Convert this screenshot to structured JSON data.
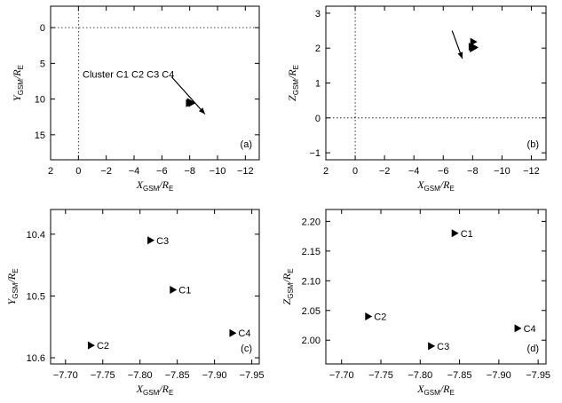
{
  "chart_data": [
    {
      "type": "scatter",
      "panel_label": "(a)",
      "xlabel": "X_GSM/R_E",
      "xlabel_main": "X",
      "xlabel_sub": "GSM",
      "xlabel_unit": "/R",
      "xlabel_unit_sub": "E",
      "ylabel_main": "Y",
      "ylabel_sub": "GSM",
      "ylabel_unit": "/R",
      "ylabel_unit_sub": "E",
      "xlim": [
        2,
        -13
      ],
      "ylim": [
        -3,
        18.5
      ],
      "x_reversed": true,
      "y_reversed": true,
      "xticks": [
        2,
        0,
        -2,
        -4,
        -6,
        -8,
        -10,
        -12
      ],
      "xtick_labels": [
        "2",
        "0",
        "−2",
        "−4",
        "−6",
        "−8",
        "−10",
        "−12"
      ],
      "yticks": [
        0,
        5,
        10,
        15
      ],
      "ytick_labels": [
        "0",
        "5",
        "10",
        "15"
      ],
      "zero_lines": {
        "x": 0,
        "y": 0
      },
      "annotation": "Cluster  C1  C2  C3  C4",
      "arrow": {
        "from": [
          -6.7,
          6.9
        ],
        "to": [
          -9.1,
          12.1
        ]
      },
      "points": [
        {
          "x": -7.84,
          "y": 10.49
        },
        {
          "x": -7.73,
          "y": 10.58
        },
        {
          "x": -7.81,
          "y": 10.41
        },
        {
          "x": -7.92,
          "y": 10.56
        }
      ]
    },
    {
      "type": "scatter",
      "panel_label": "(b)",
      "xlabel_main": "X",
      "xlabel_sub": "GSM",
      "xlabel_unit": "/R",
      "xlabel_unit_sub": "E",
      "ylabel_main": "Z",
      "ylabel_sub": "GSM",
      "ylabel_unit": "/R",
      "ylabel_unit_sub": "E",
      "xlim": [
        2,
        -13
      ],
      "ylim": [
        -1.2,
        3.2
      ],
      "x_reversed": true,
      "xticks": [
        2,
        0,
        -2,
        -4,
        -6,
        -8,
        -10,
        -12
      ],
      "xtick_labels": [
        "2",
        "0",
        "−2",
        "−4",
        "−6",
        "−8",
        "−10",
        "−12"
      ],
      "yticks": [
        -1,
        0,
        1,
        2,
        3
      ],
      "ytick_labels": [
        "−1",
        "0",
        "1",
        "2",
        "3"
      ],
      "zero_lines": {
        "x": 0,
        "y": 0
      },
      "arrow": {
        "from": [
          -6.6,
          2.5
        ],
        "to": [
          -7.3,
          1.7
        ]
      },
      "points": [
        {
          "x": -7.84,
          "y": 2.18
        },
        {
          "x": -7.73,
          "y": 2.04
        },
        {
          "x": -7.81,
          "y": 1.99
        },
        {
          "x": -7.92,
          "y": 2.02
        }
      ]
    },
    {
      "type": "scatter",
      "panel_label": "(c)",
      "xlabel_main": "X",
      "xlabel_sub": "GSM",
      "xlabel_unit": "/R",
      "xlabel_unit_sub": "E",
      "ylabel_main": "Y",
      "ylabel_sub": "GSM",
      "ylabel_unit": "/R",
      "ylabel_unit_sub": "E",
      "xlim": [
        -7.68,
        -7.96
      ],
      "ylim": [
        10.36,
        10.61
      ],
      "x_reversed": true,
      "y_reversed": true,
      "xticks": [
        -7.7,
        -7.75,
        -7.8,
        -7.85,
        -7.9,
        -7.95
      ],
      "xtick_labels": [
        "−7.70",
        "−7.75",
        "−7.80",
        "−7.85",
        "−7.90",
        "−7.95"
      ],
      "yticks": [
        10.4,
        10.5,
        10.6
      ],
      "ytick_labels": [
        "10.4",
        "10.5",
        "10.6"
      ],
      "points": [
        {
          "label": "C1",
          "x": -7.84,
          "y": 10.49
        },
        {
          "label": "C2",
          "x": -7.73,
          "y": 10.58
        },
        {
          "label": "C3",
          "x": -7.81,
          "y": 10.41
        },
        {
          "label": "C4",
          "x": -7.92,
          "y": 10.56
        }
      ]
    },
    {
      "type": "scatter",
      "panel_label": "(d)",
      "xlabel_main": "X",
      "xlabel_sub": "GSM",
      "xlabel_unit": "/R",
      "xlabel_unit_sub": "E",
      "ylabel_main": "Z",
      "ylabel_sub": "GSM",
      "ylabel_unit": "/R",
      "ylabel_unit_sub": "E",
      "xlim": [
        -7.68,
        -7.96
      ],
      "ylim": [
        1.96,
        2.22
      ],
      "x_reversed": true,
      "xticks": [
        -7.7,
        -7.75,
        -7.8,
        -7.85,
        -7.9,
        -7.95
      ],
      "xtick_labels": [
        "−7.70",
        "−7.75",
        "−7.80",
        "−7.85",
        "−7.90",
        "−7.95"
      ],
      "yticks": [
        2.0,
        2.05,
        2.1,
        2.15,
        2.2
      ],
      "ytick_labels": [
        "2.00",
        "2.05",
        "2.10",
        "2.15",
        "2.20"
      ],
      "points": [
        {
          "label": "C1",
          "x": -7.84,
          "y": 2.18
        },
        {
          "label": "C2",
          "x": -7.73,
          "y": 2.04
        },
        {
          "label": "C3",
          "x": -7.81,
          "y": 1.99
        },
        {
          "label": "C4",
          "x": -7.92,
          "y": 2.02
        }
      ]
    }
  ]
}
